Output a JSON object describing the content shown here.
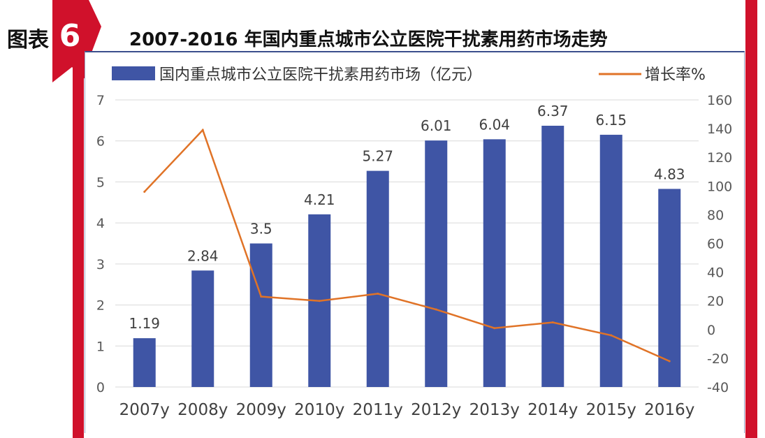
{
  "figure": {
    "label": "图表",
    "number": "6",
    "title": "2007-2016 年国内重点城市公立医院干扰素用药市场走势"
  },
  "colors": {
    "bar": "#3f55a5",
    "line": "#e07327",
    "accent": "#d0112b",
    "grid": "#d9d9d9",
    "text": "#595959"
  },
  "chart_data": {
    "type": "bar",
    "title": "2007-2016 年国内重点城市公立医院干扰素用药市场走势",
    "legend_placement": "top",
    "grid": true,
    "categories": [
      "2007y",
      "2008y",
      "2009y",
      "2010y",
      "2011y",
      "2012y",
      "2013y",
      "2014y",
      "2015y",
      "2016y"
    ],
    "y_left": {
      "ylim": [
        0,
        7
      ],
      "ticks": [
        "0",
        "1",
        "2",
        "3",
        "4",
        "5",
        "6",
        "7"
      ]
    },
    "y_right": {
      "ylim": [
        -40,
        160
      ],
      "ticks": [
        "-40",
        "-20",
        "0",
        "20",
        "40",
        "60",
        "80",
        "100",
        "120",
        "140",
        "160"
      ]
    },
    "series": [
      {
        "name": "国内重点城市公立医院干扰素用药市场（亿元）",
        "type": "bar",
        "axis": "left",
        "values": [
          1.19,
          2.84,
          3.5,
          4.21,
          5.27,
          6.01,
          6.04,
          6.37,
          6.15,
          4.83
        ],
        "labels": [
          "1.19",
          "2.84",
          "3.5",
          "4.21",
          "5.27",
          "6.01",
          "6.04",
          "6.37",
          "6.15",
          "4.83"
        ]
      },
      {
        "name": "增长率%",
        "type": "line",
        "axis": "right",
        "values": [
          96,
          139,
          23,
          20,
          25,
          14,
          1,
          5,
          -4,
          -22
        ]
      }
    ]
  }
}
